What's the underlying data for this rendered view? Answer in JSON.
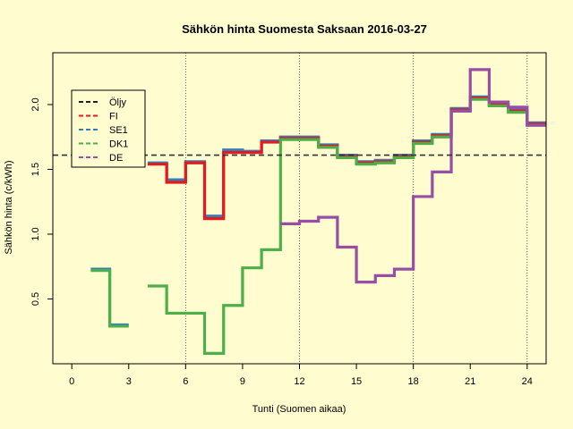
{
  "chart_data": {
    "type": "line",
    "title": "Sähkön hinta Suomesta Saksaan 2016-03-27",
    "xlabel": "Tunti (Suomen aikaa)",
    "ylabel": "Sähkön hinta (c/kWh)",
    "xlim": [
      -1,
      25
    ],
    "ylim": [
      0,
      2.4
    ],
    "xticks": [
      0,
      3,
      6,
      9,
      12,
      15,
      18,
      21,
      24
    ],
    "yticks": [
      0.5,
      1.0,
      1.5,
      2.0
    ],
    "ytick_labels": [
      "0.5",
      "1.0",
      "1.5",
      "2.0"
    ],
    "vlines": [
      6,
      12,
      18,
      24
    ],
    "hline": {
      "name": "Öljy",
      "value": 1.61,
      "color": "#333333"
    },
    "legend_position": "top-left",
    "legend": [
      {
        "name": "Öljy",
        "color": "#222222"
      },
      {
        "name": "FI",
        "color": "#e41a1c"
      },
      {
        "name": "SE1",
        "color": "#377eb8"
      },
      {
        "name": "DK1",
        "color": "#4daf4a"
      },
      {
        "name": "DE",
        "color": "#984ea3"
      }
    ],
    "series": [
      {
        "name": "SE1",
        "color": "#377eb8",
        "values": [
          null,
          0.73,
          0.3,
          null,
          1.55,
          1.42,
          1.56,
          1.14,
          1.65,
          1.64,
          1.72,
          1.75,
          1.75,
          1.69,
          1.61,
          1.56,
          1.57,
          1.61,
          1.72,
          1.77,
          1.97,
          2.06,
          2.0,
          1.96,
          1.86
        ]
      },
      {
        "name": "FI",
        "color": "#e41a1c",
        "values": [
          null,
          null,
          null,
          null,
          1.54,
          1.4,
          1.55,
          1.12,
          1.63,
          1.63,
          1.71,
          1.74,
          1.74,
          1.68,
          1.6,
          1.55,
          1.56,
          1.6,
          1.71,
          1.76,
          1.96,
          2.05,
          2.0,
          1.95,
          1.85
        ]
      },
      {
        "name": "DK1",
        "color": "#4daf4a",
        "values": [
          null,
          0.72,
          0.29,
          null,
          0.6,
          0.39,
          0.39,
          0.08,
          0.45,
          0.74,
          0.88,
          1.73,
          1.73,
          1.67,
          1.59,
          1.54,
          1.55,
          1.59,
          1.7,
          1.75,
          1.95,
          2.04,
          1.99,
          1.94,
          1.84
        ]
      },
      {
        "name": "DE",
        "color": "#984ea3",
        "values": [
          null,
          null,
          null,
          null,
          null,
          null,
          null,
          null,
          null,
          null,
          null,
          1.08,
          1.1,
          1.13,
          0.9,
          0.63,
          0.68,
          0.73,
          1.29,
          1.48,
          1.95,
          2.27,
          2.02,
          1.98,
          1.84
        ]
      }
    ]
  }
}
